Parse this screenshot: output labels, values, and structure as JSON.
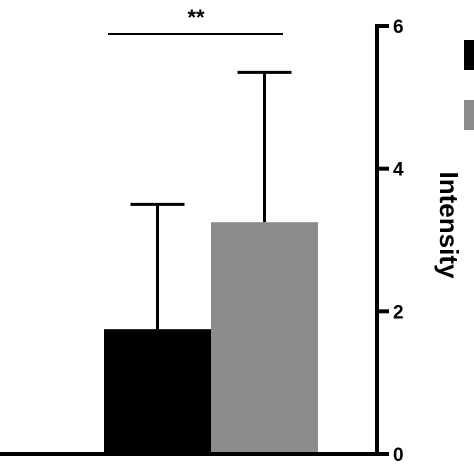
{
  "chart_data": {
    "type": "bar",
    "categories": [
      "",
      ""
    ],
    "series": [
      {
        "values": [
          1.75,
          3.25
        ],
        "errors": [
          1.75,
          2.1
        ],
        "colors": [
          "#000000",
          "#8c8c8e"
        ]
      }
    ],
    "xlabel": "",
    "ylabel": "Intensity",
    "ylim": [
      0,
      6
    ],
    "yticks": [
      "0",
      "2",
      "4",
      "6"
    ],
    "y_axis_side": "right",
    "grid": false,
    "legend_partial": true,
    "legend_colors": [
      "#000000",
      "#8c8c8e"
    ],
    "significance": {
      "label": "**",
      "from_category": 0,
      "to_category": 1
    }
  }
}
